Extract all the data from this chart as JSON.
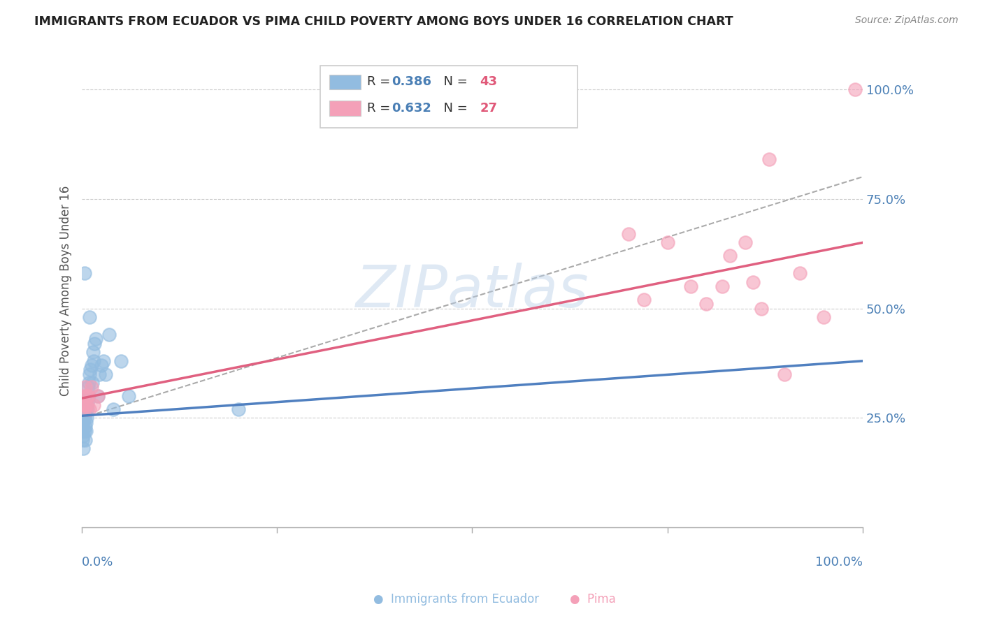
{
  "title": "IMMIGRANTS FROM ECUADOR VS PIMA CHILD POVERTY AMONG BOYS UNDER 16 CORRELATION CHART",
  "source": "Source: ZipAtlas.com",
  "ylabel": "Child Poverty Among Boys Under 16",
  "ytick_labels": [
    "25.0%",
    "50.0%",
    "75.0%",
    "100.0%"
  ],
  "ytick_positions": [
    0.25,
    0.5,
    0.75,
    1.0
  ],
  "watermark": "ZIPatlas",
  "blue_color": "#92bce0",
  "pink_color": "#f4a0b8",
  "blue_line_color": "#5080c0",
  "pink_line_color": "#e06080",
  "gray_dash_color": "#aaaaaa",
  "label_color": "#4a7fb5",
  "n_value_color": "#e05878",
  "ecuador_x": [
    0.001,
    0.001,
    0.002,
    0.002,
    0.002,
    0.003,
    0.003,
    0.003,
    0.004,
    0.004,
    0.004,
    0.005,
    0.005,
    0.005,
    0.006,
    0.006,
    0.006,
    0.007,
    0.007,
    0.008,
    0.008,
    0.009,
    0.009,
    0.01,
    0.011,
    0.012,
    0.013,
    0.014,
    0.015,
    0.016,
    0.018,
    0.02,
    0.022,
    0.025,
    0.028,
    0.03,
    0.035,
    0.04,
    0.05,
    0.06,
    0.003,
    0.01,
    0.2
  ],
  "ecuador_y": [
    0.2,
    0.22,
    0.21,
    0.24,
    0.18,
    0.22,
    0.25,
    0.28,
    0.23,
    0.26,
    0.2,
    0.24,
    0.27,
    0.22,
    0.25,
    0.28,
    0.3,
    0.27,
    0.3,
    0.29,
    0.32,
    0.3,
    0.33,
    0.35,
    0.36,
    0.37,
    0.33,
    0.4,
    0.38,
    0.42,
    0.43,
    0.3,
    0.35,
    0.37,
    0.38,
    0.35,
    0.44,
    0.27,
    0.38,
    0.3,
    0.58,
    0.48,
    0.27
  ],
  "pima_x": [
    0.001,
    0.002,
    0.003,
    0.004,
    0.005,
    0.006,
    0.007,
    0.008,
    0.01,
    0.012,
    0.015,
    0.02,
    0.7,
    0.72,
    0.75,
    0.78,
    0.8,
    0.82,
    0.83,
    0.85,
    0.86,
    0.87,
    0.88,
    0.9,
    0.92,
    0.95,
    0.99
  ],
  "pima_y": [
    0.28,
    0.3,
    0.27,
    0.32,
    0.28,
    0.3,
    0.28,
    0.3,
    0.27,
    0.32,
    0.28,
    0.3,
    0.67,
    0.52,
    0.65,
    0.55,
    0.51,
    0.55,
    0.62,
    0.65,
    0.56,
    0.5,
    0.84,
    0.35,
    0.58,
    0.48,
    1.0
  ],
  "blue_line_x0": 0.0,
  "blue_line_y0": 0.255,
  "blue_line_x1": 1.0,
  "blue_line_y1": 0.38,
  "pink_line_x0": 0.0,
  "pink_line_y0": 0.295,
  "pink_line_x1": 1.0,
  "pink_line_y1": 0.65,
  "gray_line_x0": 0.0,
  "gray_line_y0": 0.25,
  "gray_line_x1": 1.0,
  "gray_line_y1": 0.8,
  "legend_R1": "0.386",
  "legend_N1": "43",
  "legend_R2": "0.632",
  "legend_N2": "27",
  "xlim": [
    0.0,
    1.0
  ],
  "ylim": [
    0.0,
    1.08
  ]
}
